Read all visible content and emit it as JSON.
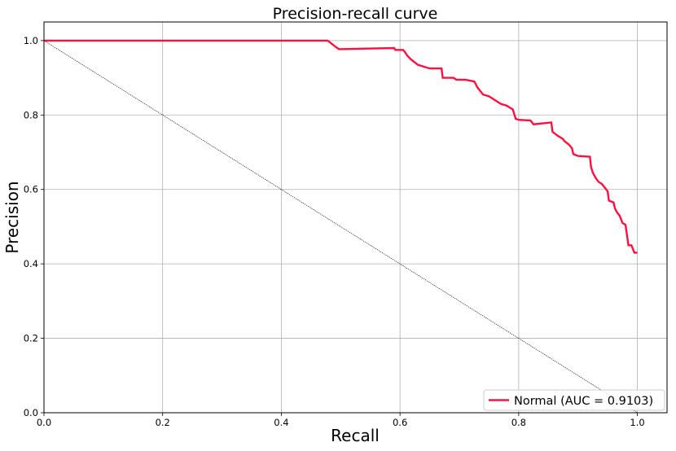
{
  "chart_data": {
    "type": "line",
    "title": "Precision-recall curve",
    "xlabel": "Recall",
    "ylabel": "Precision",
    "xlim": [
      0.0,
      1.05
    ],
    "ylim": [
      0.0,
      1.05
    ],
    "xticks": [
      "0.0",
      "0.2",
      "0.4",
      "0.6",
      "0.8",
      "1.0"
    ],
    "yticks": [
      "0.0",
      "0.2",
      "0.4",
      "0.6",
      "0.8",
      "1.0"
    ],
    "grid": true,
    "legend": {
      "placement": "lower-right",
      "entries": [
        "Normal (AUC = 0.9103)"
      ]
    },
    "series": [
      {
        "name": "Normal (AUC = 0.9103)",
        "color": "#ff1040",
        "x": [
          0.0,
          0.478,
          0.482,
          0.486,
          0.49,
          0.497,
          0.59,
          0.592,
          0.605,
          0.608,
          0.612,
          0.615,
          0.618,
          0.622,
          0.626,
          0.63,
          0.64,
          0.65,
          0.67,
          0.672,
          0.69,
          0.695,
          0.71,
          0.725,
          0.727,
          0.73,
          0.735,
          0.74,
          0.75,
          0.76,
          0.77,
          0.78,
          0.79,
          0.795,
          0.8,
          0.82,
          0.825,
          0.855,
          0.857,
          0.865,
          0.87,
          0.875,
          0.877,
          0.885,
          0.89,
          0.892,
          0.9,
          0.92,
          0.922,
          0.925,
          0.93,
          0.935,
          0.94,
          0.95,
          0.952,
          0.96,
          0.962,
          0.965,
          0.97,
          0.975,
          0.98,
          0.985,
          0.99,
          0.995,
          1.0
        ],
        "y": [
          1.0,
          1.0,
          0.995,
          0.99,
          0.985,
          0.977,
          0.98,
          0.975,
          0.975,
          0.97,
          0.96,
          0.955,
          0.95,
          0.945,
          0.94,
          0.935,
          0.93,
          0.925,
          0.925,
          0.9,
          0.9,
          0.895,
          0.895,
          0.89,
          0.885,
          0.875,
          0.865,
          0.855,
          0.85,
          0.84,
          0.83,
          0.825,
          0.815,
          0.79,
          0.787,
          0.785,
          0.775,
          0.78,
          0.755,
          0.745,
          0.74,
          0.735,
          0.73,
          0.72,
          0.71,
          0.695,
          0.69,
          0.688,
          0.66,
          0.645,
          0.63,
          0.62,
          0.615,
          0.595,
          0.57,
          0.565,
          0.55,
          0.54,
          0.53,
          0.51,
          0.505,
          0.45,
          0.45,
          0.43,
          0.43
        ]
      }
    ],
    "baseline": {
      "x": [
        0.0,
        1.0
      ],
      "y": [
        1.0,
        0.0
      ],
      "color": "#000000"
    }
  }
}
